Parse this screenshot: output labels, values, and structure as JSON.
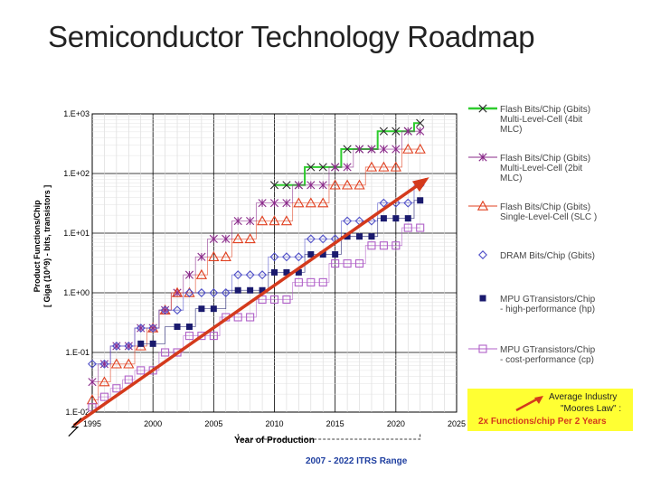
{
  "title": "Semiconductor Technology Roadmap",
  "chart_data": {
    "type": "scatter",
    "y_scale": "log",
    "xlim": [
      1995,
      2025
    ],
    "ylim": [
      0.01,
      1000
    ],
    "x_ticks": [
      "1995",
      "2000",
      "2005",
      "2010",
      "2015",
      "2020",
      "2025"
    ],
    "y_ticks": [
      "1.E-02",
      "1.E-01",
      "1.E+00",
      "1.E+01",
      "1.E+02",
      "1.E+03"
    ],
    "xlabel": "Year of Production",
    "ylabel_line1": "Product Functions/Chip",
    "ylabel_line2": "[ Giga (10^9) - bits, transistors ]",
    "range_label": "2007 - 2022 ITRS Range",
    "series": [
      {
        "name": "Flash Bits/Chip (Gbits) Multi-Level-Cell (4bit MLC)",
        "legend_lines": [
          "Flash Bits/Chip (Gbits)",
          "Multi-Level-Cell (4bit",
          "MLC)"
        ],
        "color": "#2b2b2b",
        "step_color": "#2ecc2e",
        "marker": "x-bar",
        "x": [
          2010,
          2011,
          2012,
          2013,
          2014,
          2015,
          2016,
          2017,
          2018,
          2019,
          2020,
          2021,
          2022
        ],
        "y": [
          64,
          64,
          64,
          128,
          128,
          128,
          256,
          256,
          256,
          512,
          512,
          512,
          700
        ]
      },
      {
        "name": "Flash Bits/Chip (Gbits) Multi-Level-Cell (2bit MLC)",
        "legend_lines": [
          "Flash Bits/Chip (Gbits)",
          "Multi-Level-Cell (2bit",
          "MLC)"
        ],
        "color": "#8a2a8a",
        "marker": "x",
        "x": [
          1995,
          1996,
          1997,
          1998,
          1999,
          2000,
          2001,
          2002,
          2003,
          2004,
          2005,
          2006,
          2007,
          2008,
          2009,
          2010,
          2011,
          2012,
          2013,
          2014,
          2015,
          2016,
          2017,
          2018,
          2019,
          2020,
          2021,
          2022
        ],
        "y": [
          0.032,
          0.064,
          0.128,
          0.128,
          0.256,
          0.256,
          0.512,
          1.0,
          2.0,
          4.0,
          8.0,
          8.0,
          16,
          16,
          32,
          32,
          32,
          64,
          64,
          64,
          128,
          128,
          256,
          256,
          256,
          256,
          512,
          512
        ]
      },
      {
        "name": "Flash Bits/Chip (Gbits) Single-Level-Cell (SLC)",
        "legend_lines": [
          "Flash Bits/Chip (Gbits)",
          "Single-Level-Cell (SLC )"
        ],
        "color": "#e04020",
        "marker": "triangle-open",
        "x": [
          1995,
          1996,
          1997,
          1998,
          1999,
          2000,
          2001,
          2002,
          2003,
          2004,
          2005,
          2006,
          2007,
          2008,
          2009,
          2010,
          2011,
          2012,
          2013,
          2014,
          2015,
          2016,
          2017,
          2018,
          2019,
          2020,
          2021,
          2022
        ],
        "y": [
          0.016,
          0.032,
          0.064,
          0.064,
          0.128,
          0.256,
          0.512,
          1.0,
          1.0,
          2.0,
          4.0,
          4.0,
          8.0,
          8.0,
          16,
          16,
          16,
          32,
          32,
          32,
          64,
          64,
          64,
          128,
          128,
          128,
          256,
          256
        ]
      },
      {
        "name": "DRAM Bits/Chip (Gbits)",
        "legend_lines": [
          "DRAM Bits/Chip (Gbits)"
        ],
        "color": "#5050c8",
        "marker": "diamond-open",
        "x": [
          1995,
          1996,
          1997,
          1998,
          1999,
          2000,
          2001,
          2002,
          2003,
          2004,
          2005,
          2006,
          2007,
          2008,
          2009,
          2010,
          2011,
          2012,
          2013,
          2014,
          2015,
          2016,
          2017,
          2018,
          2019,
          2020,
          2021,
          2022
        ],
        "y": [
          0.064,
          0.064,
          0.128,
          0.128,
          0.256,
          0.256,
          0.512,
          0.512,
          1.0,
          1.0,
          1.0,
          1.0,
          2.0,
          2.0,
          2.0,
          4.0,
          4.0,
          4.0,
          8.0,
          8.0,
          8.0,
          16,
          16,
          16,
          32,
          32,
          32,
          64
        ]
      },
      {
        "name": "MPU GTransistors/Chip - high-performance (hp)",
        "legend_lines": [
          "MPU GTransistors/Chip",
          "- high-performance (hp)"
        ],
        "color": "#1a1a6e",
        "marker": "square-filled",
        "x": [
          1999,
          2000,
          2002,
          2003,
          2004,
          2005,
          2007,
          2008,
          2009,
          2010,
          2011,
          2012,
          2013,
          2014,
          2015,
          2016,
          2017,
          2018,
          2019,
          2020,
          2021,
          2022
        ],
        "y": [
          0.14,
          0.14,
          0.27,
          0.27,
          0.54,
          0.54,
          1.1,
          1.1,
          1.1,
          2.2,
          2.2,
          2.2,
          4.4,
          4.4,
          4.4,
          8.8,
          8.8,
          8.8,
          17.7,
          17.7,
          17.7,
          35.4
        ]
      },
      {
        "name": "MPU GTransistors/Chip - cost-performance (cp)",
        "legend_lines": [
          "MPU GTransistors/Chip",
          "- cost-performance (cp)"
        ],
        "color": "#b060c8",
        "marker": "square-open",
        "x": [
          1995,
          1996,
          1997,
          1998,
          1999,
          2000,
          2001,
          2002,
          2003,
          2004,
          2005,
          2006,
          2007,
          2008,
          2009,
          2010,
          2011,
          2012,
          2013,
          2014,
          2015,
          2016,
          2017,
          2018,
          2019,
          2020,
          2021,
          2022
        ],
        "y": [
          0.012,
          0.018,
          0.025,
          0.035,
          0.05,
          0.05,
          0.1,
          0.1,
          0.19,
          0.19,
          0.19,
          0.39,
          0.39,
          0.39,
          0.77,
          0.77,
          0.77,
          1.5,
          1.5,
          1.5,
          3.1,
          3.1,
          3.1,
          6.2,
          6.2,
          6.2,
          12.3,
          12.3
        ]
      }
    ],
    "trend_line": {
      "name": "Average Industry \"Moores Law\" : 2x Functions/chip Per 2 Years",
      "color": "#d43a1c",
      "x": [
        1993.5,
        2022.5
      ],
      "y": [
        0.006,
        80
      ]
    },
    "note_lines": [
      "Average Industry",
      "\"Moores Law\" :",
      "2x Functions/chip Per 2 Years"
    ]
  }
}
